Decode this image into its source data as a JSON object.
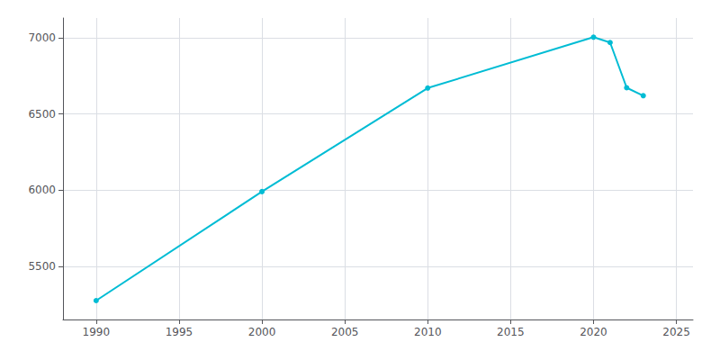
{
  "chart_data": {
    "type": "line",
    "x": [
      1990,
      2000,
      2010,
      2020,
      2021,
      2022,
      2023
    ],
    "values": [
      5274,
      5990,
      6670,
      7004,
      6969,
      6672,
      6620
    ],
    "color": "#00BCD4",
    "marker": "circle",
    "xlim": [
      1988,
      2026
    ],
    "ylim": [
      5150,
      7130
    ],
    "xticks": [
      1990,
      1995,
      2000,
      2005,
      2010,
      2015,
      2020,
      2025
    ],
    "yticks": [
      5500,
      6000,
      6500,
      7000
    ],
    "grid": true
  }
}
